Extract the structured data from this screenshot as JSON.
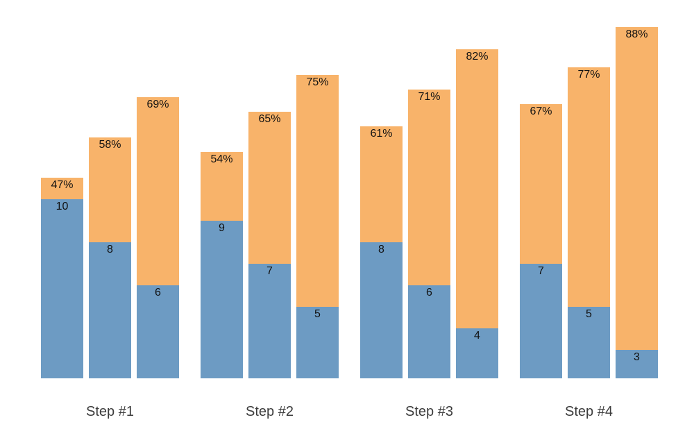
{
  "chart_data": {
    "type": "bar",
    "variant": "grouped stacked funnel-style bars; no axes, no gridlines, no legend, white background",
    "title": "",
    "categories": [
      "Step #1",
      "Step #2",
      "Step #3",
      "Step #4"
    ],
    "groups": [
      {
        "category": "Step #1",
        "bars": [
          {
            "value": 10,
            "value_label": "10",
            "pct": 47,
            "pct_label": "47%"
          },
          {
            "value": 8,
            "value_label": "8",
            "pct": 58,
            "pct_label": "58%"
          },
          {
            "value": 6,
            "value_label": "6",
            "pct": 69,
            "pct_label": "69%"
          }
        ]
      },
      {
        "category": "Step #2",
        "bars": [
          {
            "value": 9,
            "value_label": "9",
            "pct": 54,
            "pct_label": "54%"
          },
          {
            "value": 7,
            "value_label": "7",
            "pct": 65,
            "pct_label": "65%"
          },
          {
            "value": 5,
            "value_label": "5",
            "pct": 75,
            "pct_label": "75%"
          }
        ]
      },
      {
        "category": "Step #3",
        "bars": [
          {
            "value": 8,
            "value_label": "8",
            "pct": 61,
            "pct_label": "61%"
          },
          {
            "value": 6,
            "value_label": "6",
            "pct": 71,
            "pct_label": "71%"
          },
          {
            "value": 4,
            "value_label": "4",
            "pct": 82,
            "pct_label": "82%"
          }
        ]
      },
      {
        "category": "Step #4",
        "bars": [
          {
            "value": 7,
            "value_label": "7",
            "pct": 67,
            "pct_label": "67%"
          },
          {
            "value": 5,
            "value_label": "5",
            "pct": 77,
            "pct_label": "77%"
          },
          {
            "value": 3,
            "value_label": "3",
            "pct": 88,
            "pct_label": "88%"
          }
        ]
      }
    ],
    "colors": {
      "segment_bottom": "#6d9bc3",
      "segment_top": "#f8b36a",
      "bar_label_text": "#111111",
      "category_label_text": "#3c3c3c",
      "background": "#ffffff"
    },
    "legend": "none",
    "grid": false,
    "axes": "none"
  }
}
